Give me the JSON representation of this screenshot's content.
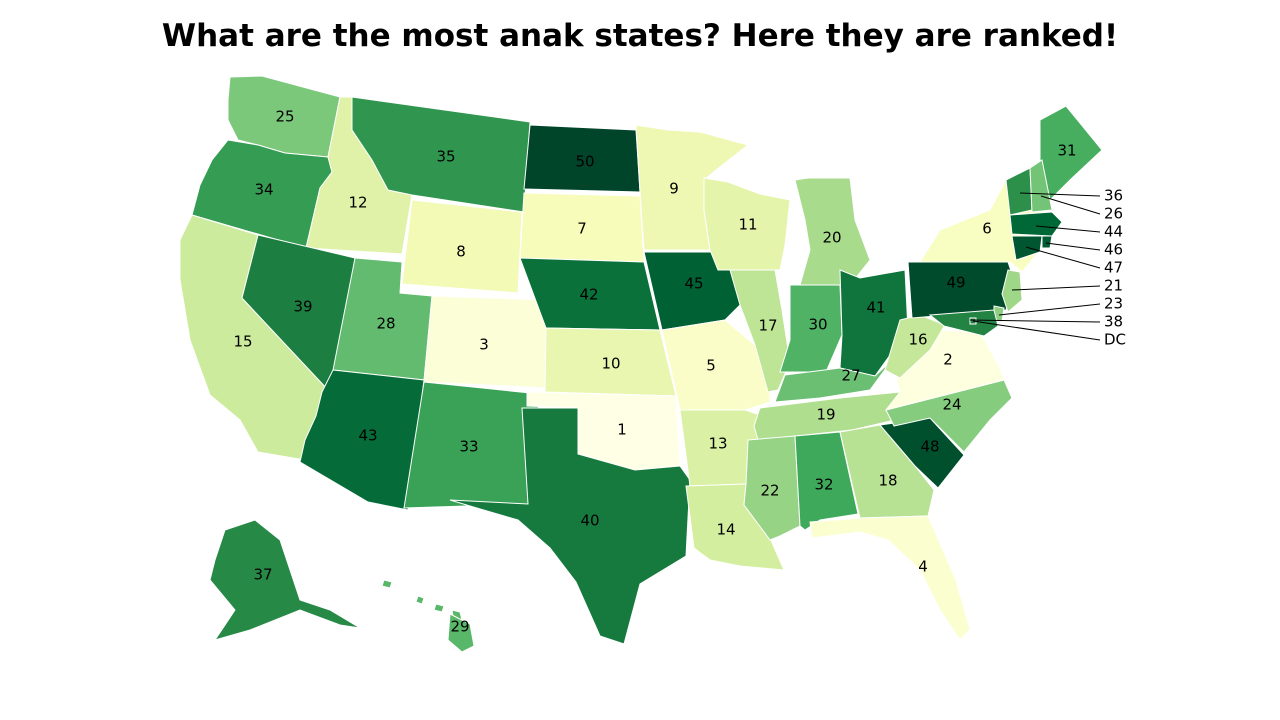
{
  "title": "What are the most anak states? Here they are ranked!",
  "color_scale": "YlGn (light = low rank, dark = high rank)",
  "states": [
    {
      "state": "WA",
      "rank": "25"
    },
    {
      "state": "OR",
      "rank": "34"
    },
    {
      "state": "CA",
      "rank": "15"
    },
    {
      "state": "ID",
      "rank": "12"
    },
    {
      "state": "NV",
      "rank": "39"
    },
    {
      "state": "MT",
      "rank": "35"
    },
    {
      "state": "WY",
      "rank": "8"
    },
    {
      "state": "UT",
      "rank": "28"
    },
    {
      "state": "AZ",
      "rank": "43"
    },
    {
      "state": "CO",
      "rank": "3"
    },
    {
      "state": "NM",
      "rank": "33"
    },
    {
      "state": "ND",
      "rank": "50"
    },
    {
      "state": "SD",
      "rank": "7"
    },
    {
      "state": "NE",
      "rank": "42"
    },
    {
      "state": "KS",
      "rank": "10"
    },
    {
      "state": "OK",
      "rank": "1"
    },
    {
      "state": "TX",
      "rank": "40"
    },
    {
      "state": "MN",
      "rank": "9"
    },
    {
      "state": "IA",
      "rank": "45"
    },
    {
      "state": "MO",
      "rank": "5"
    },
    {
      "state": "AR",
      "rank": "13"
    },
    {
      "state": "LA",
      "rank": "14"
    },
    {
      "state": "WI",
      "rank": "11"
    },
    {
      "state": "IL",
      "rank": "17"
    },
    {
      "state": "MI",
      "rank": "20"
    },
    {
      "state": "IN",
      "rank": "30"
    },
    {
      "state": "OH",
      "rank": "41"
    },
    {
      "state": "KY",
      "rank": "27"
    },
    {
      "state": "TN",
      "rank": "19"
    },
    {
      "state": "MS",
      "rank": "22"
    },
    {
      "state": "AL",
      "rank": "32"
    },
    {
      "state": "GA",
      "rank": "18"
    },
    {
      "state": "FL",
      "rank": "4"
    },
    {
      "state": "SC",
      "rank": "48"
    },
    {
      "state": "NC",
      "rank": "24"
    },
    {
      "state": "VA",
      "rank": "2"
    },
    {
      "state": "WV",
      "rank": "16"
    },
    {
      "state": "PA",
      "rank": "49"
    },
    {
      "state": "NY",
      "rank": "6"
    },
    {
      "state": "ME",
      "rank": "31"
    },
    {
      "state": "AK",
      "rank": "37"
    },
    {
      "state": "HI",
      "rank": "29"
    }
  ],
  "callouts": [
    {
      "state": "VT",
      "label": "36"
    },
    {
      "state": "NH",
      "label": "26"
    },
    {
      "state": "MA",
      "label": "44"
    },
    {
      "state": "RI",
      "label": "46"
    },
    {
      "state": "CT",
      "label": "47"
    },
    {
      "state": "NJ",
      "label": "21"
    },
    {
      "state": "DE",
      "label": "23"
    },
    {
      "state": "MD",
      "label": "38"
    },
    {
      "state": "DC",
      "label": "DC"
    }
  ]
}
